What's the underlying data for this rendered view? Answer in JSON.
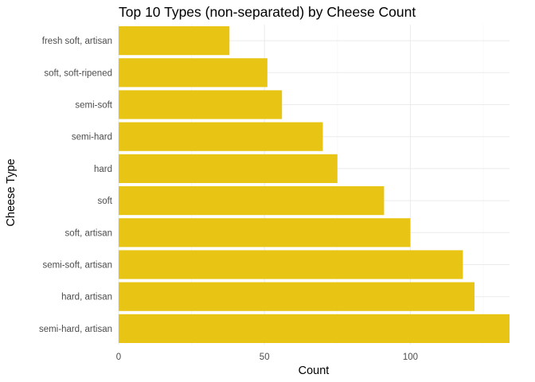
{
  "chart_data": {
    "type": "bar",
    "orientation": "horizontal",
    "title": "Top 10 Types (non-separated) by Cheese Count",
    "xlabel": "Count",
    "ylabel": "Cheese Type",
    "categories": [
      "semi-hard, artisan",
      "hard, artisan",
      "semi-soft, artisan",
      "soft, artisan",
      "soft",
      "hard",
      "semi-hard",
      "semi-soft",
      "soft, soft-ripened",
      "fresh soft, artisan"
    ],
    "values": [
      134,
      122,
      118,
      100,
      91,
      75,
      70,
      56,
      51,
      38
    ],
    "xlim": [
      0,
      134
    ],
    "xticks": [
      0,
      50,
      100
    ],
    "xtick_labels": [
      "0",
      "50",
      "100"
    ],
    "grid": true,
    "bar_color": "#E8C414",
    "theme": "minimal"
  }
}
